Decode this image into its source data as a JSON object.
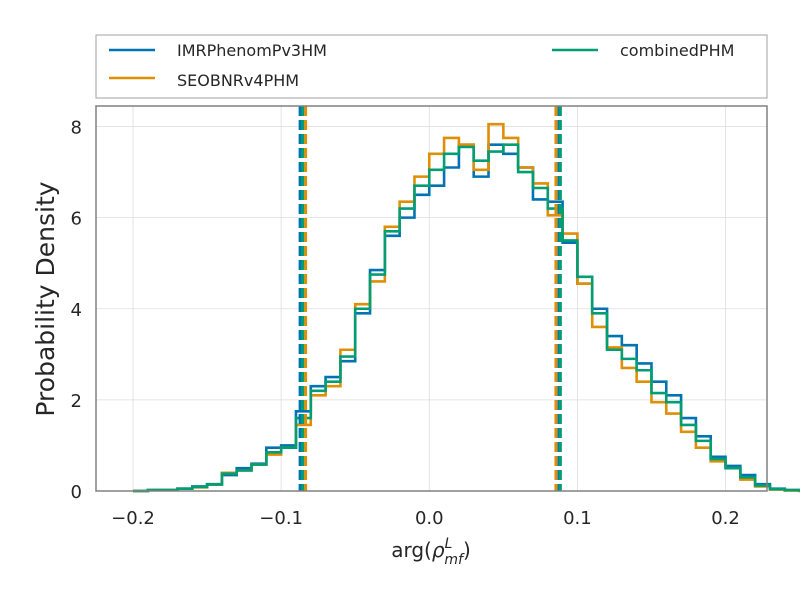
{
  "chart_data": {
    "type": "histogram",
    "xlabel": "arg(ρ^L_mf)",
    "ylabel": "Probability Density",
    "xlim": [
      -0.225,
      0.228
    ],
    "ylim": [
      0,
      8.45
    ],
    "grid": true,
    "legend_placement": "above",
    "x_ticks": [
      -0.2,
      -0.1,
      0.0,
      0.1,
      0.2
    ],
    "x_tick_labels": [
      "−0.2",
      "−0.1",
      "0.0",
      "0.1",
      "0.2"
    ],
    "y_ticks": [
      0,
      2,
      4,
      6,
      8
    ],
    "y_tick_labels": [
      "0",
      "2",
      "4",
      "6",
      "8"
    ],
    "bin_width": 0.01,
    "series": [
      {
        "name": "IMRPhenomPv3HM",
        "color": "#0173b2",
        "bin_start": -0.2,
        "density": [
          0.0,
          0.02,
          0.02,
          0.05,
          0.1,
          0.15,
          0.35,
          0.5,
          0.6,
          0.95,
          1.0,
          1.75,
          2.3,
          2.5,
          2.85,
          3.9,
          4.85,
          5.6,
          6.0,
          6.5,
          6.7,
          7.1,
          7.6,
          6.9,
          7.6,
          7.4,
          7.1,
          6.4,
          6.35,
          5.45,
          4.55,
          4.0,
          3.4,
          3.2,
          2.8,
          2.4,
          2.1,
          1.6,
          1.2,
          0.75,
          0.55,
          0.35,
          0.15,
          0.05,
          0.02,
          0.01
        ],
        "credible_interval": [
          -0.0872,
          0.0876
        ]
      },
      {
        "name": "SEOBNRv4PHM",
        "color": "#de8f05",
        "bin_start": -0.2,
        "density": [
          0.0,
          0.02,
          0.02,
          0.05,
          0.08,
          0.14,
          0.4,
          0.45,
          0.58,
          0.8,
          0.95,
          1.45,
          2.1,
          2.3,
          3.1,
          4.1,
          4.6,
          5.8,
          6.35,
          6.9,
          7.4,
          7.75,
          7.6,
          7.05,
          8.05,
          7.75,
          7.1,
          6.75,
          6.05,
          5.65,
          4.55,
          3.6,
          3.15,
          2.7,
          2.4,
          1.95,
          1.7,
          1.3,
          0.95,
          0.65,
          0.5,
          0.25,
          0.1,
          0.03,
          0.01,
          0.0
        ],
        "credible_interval": [
          -0.0835,
          0.0855
        ]
      },
      {
        "name": "combinedPHM",
        "color": "#029e73",
        "bin_start": -0.2,
        "density": [
          0.0,
          0.02,
          0.02,
          0.05,
          0.09,
          0.14,
          0.38,
          0.45,
          0.58,
          0.85,
          0.95,
          1.6,
          2.2,
          2.4,
          2.95,
          4.0,
          4.75,
          5.7,
          6.2,
          6.7,
          7.05,
          7.4,
          7.55,
          7.25,
          7.45,
          7.6,
          7.0,
          6.65,
          6.2,
          5.5,
          4.7,
          3.9,
          3.1,
          2.9,
          2.65,
          2.15,
          1.95,
          1.45,
          1.1,
          0.7,
          0.5,
          0.3,
          0.12,
          0.04,
          0.02,
          0.01
        ],
        "credible_interval": [
          -0.0855,
          0.0885
        ]
      }
    ]
  }
}
